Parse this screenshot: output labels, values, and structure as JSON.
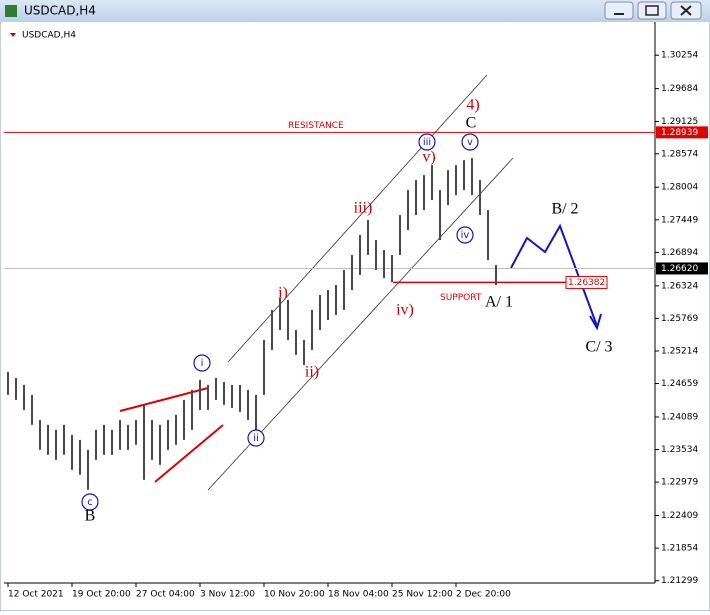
{
  "window_title": "USDCAD,H4",
  "chart_data": {
    "type": "bar",
    "title": "USDCAD,H4",
    "color": "#4a4a4a",
    "categories": [
      "12 Oct 2021",
      null,
      null,
      null,
      null,
      null,
      null,
      null,
      "19 Oct 20:00",
      null,
      null,
      null,
      null,
      null,
      null,
      null,
      "27 Oct 04:00",
      null,
      null,
      null,
      null,
      null,
      null,
      null,
      "3 Nov 12:00",
      null,
      null,
      null,
      null,
      null,
      null,
      null,
      "10 Nov 20:00",
      null,
      null,
      null,
      null,
      null,
      null,
      null,
      "18 Nov 04:00",
      null,
      null,
      null,
      null,
      null,
      null,
      null,
      "25 Nov 12:00",
      null,
      null,
      null,
      null,
      null,
      null,
      null,
      "2 Dec 20:00",
      null,
      null,
      null,
      null,
      null
    ],
    "high": [
      1.24857,
      1.24755,
      1.24636,
      1.24466,
      1.2404,
      1.23955,
      1.2387,
      1.23955,
      1.23785,
      1.23699,
      1.23529,
      1.2387,
      1.23955,
      1.2387,
      1.2404,
      1.23955,
      1.2404,
      1.24295,
      1.2404,
      1.23955,
      1.2404,
      1.24125,
      1.2438,
      1.24551,
      1.24721,
      1.24636,
      1.24755,
      1.24687,
      1.24636,
      1.24636,
      1.24551,
      1.24466,
      1.25402,
      1.25913,
      1.26117,
      1.26083,
      1.25572,
      1.25402,
      1.25913,
      1.26168,
      1.26253,
      1.26338,
      1.26594,
      1.26849,
      1.2719,
      1.27445,
      1.27104,
      1.26934,
      1.26849,
      1.2753,
      1.27956,
      1.28126,
      1.28211,
      1.28381,
      1.27956,
      1.28296,
      1.28381,
      1.28466,
      1.285,
      1.28126,
      1.27615,
      1.26679
    ],
    "low": [
      1.24466,
      1.2438,
      1.2421,
      1.23955,
      1.23529,
      1.23444,
      1.23359,
      1.23444,
      1.23189,
      1.23104,
      1.22848,
      1.23359,
      1.23444,
      1.23444,
      1.23529,
      1.23529,
      1.23614,
      1.23018,
      1.23359,
      1.23274,
      1.23529,
      1.23614,
      1.23699,
      1.2387,
      1.2421,
      1.2421,
      1.2438,
      1.24295,
      1.24244,
      1.24176,
      1.2404,
      1.2387,
      1.24466,
      1.25232,
      1.25572,
      1.25402,
      1.25147,
      1.24976,
      1.25232,
      1.25572,
      1.25742,
      1.25828,
      1.25913,
      1.26253,
      1.26509,
      1.26849,
      1.26594,
      1.26457,
      1.26389,
      1.26849,
      1.27275,
      1.2753,
      1.27615,
      1.27785,
      1.27104,
      1.277,
      1.2787,
      1.27956,
      1.2787,
      1.2753,
      1.26764,
      1.26338
    ],
    "ylim": [
      1.2126,
      1.3082
    ],
    "yticks": [
      1.30254,
      1.29684,
      1.29125,
      1.28574,
      1.28004,
      1.27449,
      1.26894,
      1.26324,
      1.25769,
      1.25214,
      1.24659,
      1.24089,
      1.23534,
      1.22979,
      1.22409,
      1.21854,
      1.21299
    ],
    "levels": [
      {
        "name": "RESISTANCE",
        "price": 1.28939,
        "color": "#e00000"
      },
      {
        "price": {
          "value": 1.2662,
          "label": "1.26620"
        },
        "color": "#c0c0c0"
      },
      {
        "name": "SUPPORT",
        "price": 1.26382,
        "color": "#e00000"
      }
    ],
    "annotations": [
      {
        "text": "c",
        "color": "#1414c8",
        "circled": true
      },
      {
        "text": "B",
        "color": "#000000"
      },
      {
        "text": "i",
        "color": "#1414c8",
        "circled": true
      },
      {
        "text": "ii",
        "color": "#1414c8",
        "circled": true
      },
      {
        "text": "i)",
        "color": "#d40000"
      },
      {
        "text": "ii)",
        "color": "#d40000"
      },
      {
        "text": "iii)",
        "color": "#d40000"
      },
      {
        "text": "iv)",
        "color": "#d40000"
      },
      {
        "text": "v)",
        "color": "#d40000"
      },
      {
        "text": "4)",
        "color": "#d40000"
      },
      {
        "text": "C",
        "color": "#000000"
      },
      {
        "text": "iii",
        "color": "#1414c8",
        "circled": true
      },
      {
        "text": "v",
        "color": "#1414c8",
        "circled": true
      },
      {
        "text": "iv",
        "color": "#1414c8",
        "circled": true
      },
      {
        "text": "A/ 1",
        "color": "#000000"
      },
      {
        "text": "B/ 2",
        "color": "#000000"
      },
      {
        "text": "C/ 3",
        "color": "#000000"
      }
    ]
  }
}
